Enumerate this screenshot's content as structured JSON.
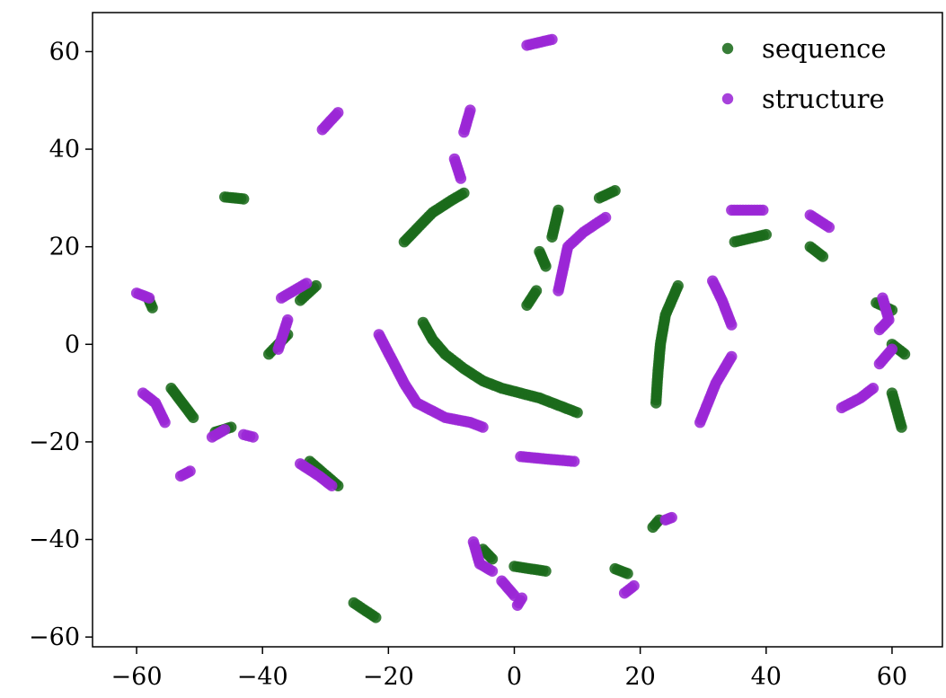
{
  "chart_data": {
    "type": "scatter",
    "title": "",
    "xlabel": "",
    "ylabel": "",
    "xlim": [
      -67,
      68
    ],
    "ylim": [
      -62,
      68
    ],
    "xticks": [
      -60,
      -40,
      -20,
      0,
      20,
      40,
      60
    ],
    "yticks": [
      -60,
      -40,
      -20,
      0,
      20,
      40,
      60
    ],
    "xtick_labels": [
      "−60",
      "−40",
      "−20",
      "0",
      "20",
      "40",
      "60"
    ],
    "ytick_labels": [
      "−60",
      "−40",
      "−20",
      "0",
      "20",
      "40",
      "60"
    ],
    "grid": false,
    "legend_position": "top-right",
    "series": [
      {
        "name": "sequence",
        "color": "#1b6b1b",
        "segments": [
          [
            [
              -46,
              30.2
            ],
            [
              -43,
              29.8
            ]
          ],
          [
            [
              -17.5,
              21
            ],
            [
              -16,
              23
            ],
            [
              -13,
              27
            ],
            [
              -10,
              29.5
            ],
            [
              -8,
              31
            ]
          ],
          [
            [
              -14.5,
              4.5
            ],
            [
              -13,
              1
            ],
            [
              -11,
              -2
            ],
            [
              -8,
              -5
            ],
            [
              -5,
              -7.5
            ],
            [
              -2,
              -9
            ],
            [
              1,
              -10
            ],
            [
              4,
              -11
            ],
            [
              7,
              -12.5
            ],
            [
              10,
              -14
            ]
          ],
          [
            [
              2,
              8
            ],
            [
              3.5,
              11
            ]
          ],
          [
            [
              4,
              19
            ],
            [
              5,
              16
            ]
          ],
          [
            [
              6,
              22
            ],
            [
              7,
              27.5
            ]
          ],
          [
            [
              13.5,
              30
            ],
            [
              16,
              31.5
            ]
          ],
          [
            [
              22.5,
              -12
            ],
            [
              22.8,
              -6
            ],
            [
              23.2,
              0
            ],
            [
              24,
              6
            ],
            [
              26,
              12
            ]
          ],
          [
            [
              35,
              21
            ],
            [
              40,
              22.5
            ]
          ],
          [
            [
              47,
              20
            ],
            [
              49,
              18
            ]
          ],
          [
            [
              57.5,
              8.5
            ],
            [
              60,
              7
            ]
          ],
          [
            [
              60,
              0
            ],
            [
              62,
              -2
            ]
          ],
          [
            [
              60,
              -10
            ],
            [
              61.5,
              -17
            ]
          ],
          [
            [
              -58,
              9
            ],
            [
              -57.5,
              7.5
            ]
          ],
          [
            [
              -34,
              9
            ],
            [
              -31.5,
              12
            ]
          ],
          [
            [
              -39,
              -2
            ],
            [
              -36,
              2
            ]
          ],
          [
            [
              -54.5,
              -9
            ],
            [
              -51,
              -15
            ]
          ],
          [
            [
              -47.5,
              -18
            ],
            [
              -45,
              -17
            ]
          ],
          [
            [
              -32.5,
              -24
            ],
            [
              -28,
              -29
            ]
          ],
          [
            [
              -25.5,
              -53
            ],
            [
              -22,
              -56
            ]
          ],
          [
            [
              -5,
              -42
            ],
            [
              -3.5,
              -44
            ]
          ],
          [
            [
              0,
              -45.5
            ],
            [
              5,
              -46.5
            ]
          ],
          [
            [
              16,
              -46
            ],
            [
              18,
              -47
            ]
          ],
          [
            [
              22,
              -37.5
            ],
            [
              23,
              -36
            ]
          ]
        ]
      },
      {
        "name": "structure",
        "color": "#9b27d6",
        "segments": [
          [
            [
              2,
              61.3
            ],
            [
              6,
              62.5
            ]
          ],
          [
            [
              -30.5,
              44
            ],
            [
              -28,
              47.5
            ]
          ],
          [
            [
              -8,
              43.5
            ],
            [
              -7,
              48
            ]
          ],
          [
            [
              -9.5,
              38
            ],
            [
              -8.5,
              34
            ]
          ],
          [
            [
              7,
              11
            ],
            [
              8.5,
              20
            ],
            [
              11,
              23
            ],
            [
              14.5,
              26
            ]
          ],
          [
            [
              34.5,
              27.5
            ],
            [
              39.5,
              27.5
            ]
          ],
          [
            [
              47,
              26.5
            ],
            [
              50,
              24
            ]
          ],
          [
            [
              31.5,
              13
            ],
            [
              33,
              9
            ],
            [
              34.5,
              4
            ]
          ],
          [
            [
              34.5,
              -2.5
            ],
            [
              32,
              -8
            ],
            [
              29.5,
              -16
            ]
          ],
          [
            [
              58.5,
              9.5
            ],
            [
              59.5,
              5
            ],
            [
              58,
              3
            ]
          ],
          [
            [
              58,
              -4
            ],
            [
              60,
              -1
            ]
          ],
          [
            [
              52,
              -13
            ],
            [
              55,
              -11
            ],
            [
              57,
              -9
            ]
          ],
          [
            [
              -21.5,
              2
            ],
            [
              -19.5,
              -3
            ],
            [
              -17.5,
              -8
            ],
            [
              -15.5,
              -12
            ],
            [
              -11,
              -15
            ],
            [
              -7,
              -16
            ],
            [
              -5,
              -17
            ]
          ],
          [
            [
              1,
              -23
            ],
            [
              5,
              -23.5
            ],
            [
              9.5,
              -24
            ]
          ],
          [
            [
              -60,
              10.5
            ],
            [
              -58,
              9.5
            ]
          ],
          [
            [
              -37,
              9.5
            ],
            [
              -33,
              12.5
            ]
          ],
          [
            [
              -36,
              5
            ],
            [
              -37.5,
              -1
            ]
          ],
          [
            [
              -59,
              -10
            ],
            [
              -57,
              -12
            ],
            [
              -55.5,
              -16
            ]
          ],
          [
            [
              -48,
              -19
            ],
            [
              -46,
              -17.5
            ]
          ],
          [
            [
              -43,
              -18.5
            ],
            [
              -41.5,
              -19
            ]
          ],
          [
            [
              -53,
              -27
            ],
            [
              -51.5,
              -26
            ]
          ],
          [
            [
              -34,
              -24.5
            ],
            [
              -31,
              -27
            ],
            [
              -29,
              -29
            ]
          ],
          [
            [
              -6.5,
              -40.5
            ],
            [
              -5.5,
              -45
            ],
            [
              -3.5,
              -46.5
            ]
          ],
          [
            [
              -2,
              -48.5
            ],
            [
              0,
              -51.5
            ]
          ],
          [
            [
              0.5,
              -53.5
            ],
            [
              1.2,
              -52
            ]
          ],
          [
            [
              17.5,
              -51
            ],
            [
              19,
              -49.5
            ]
          ],
          [
            [
              24,
              -36
            ],
            [
              25,
              -35.5
            ]
          ]
        ]
      }
    ]
  }
}
